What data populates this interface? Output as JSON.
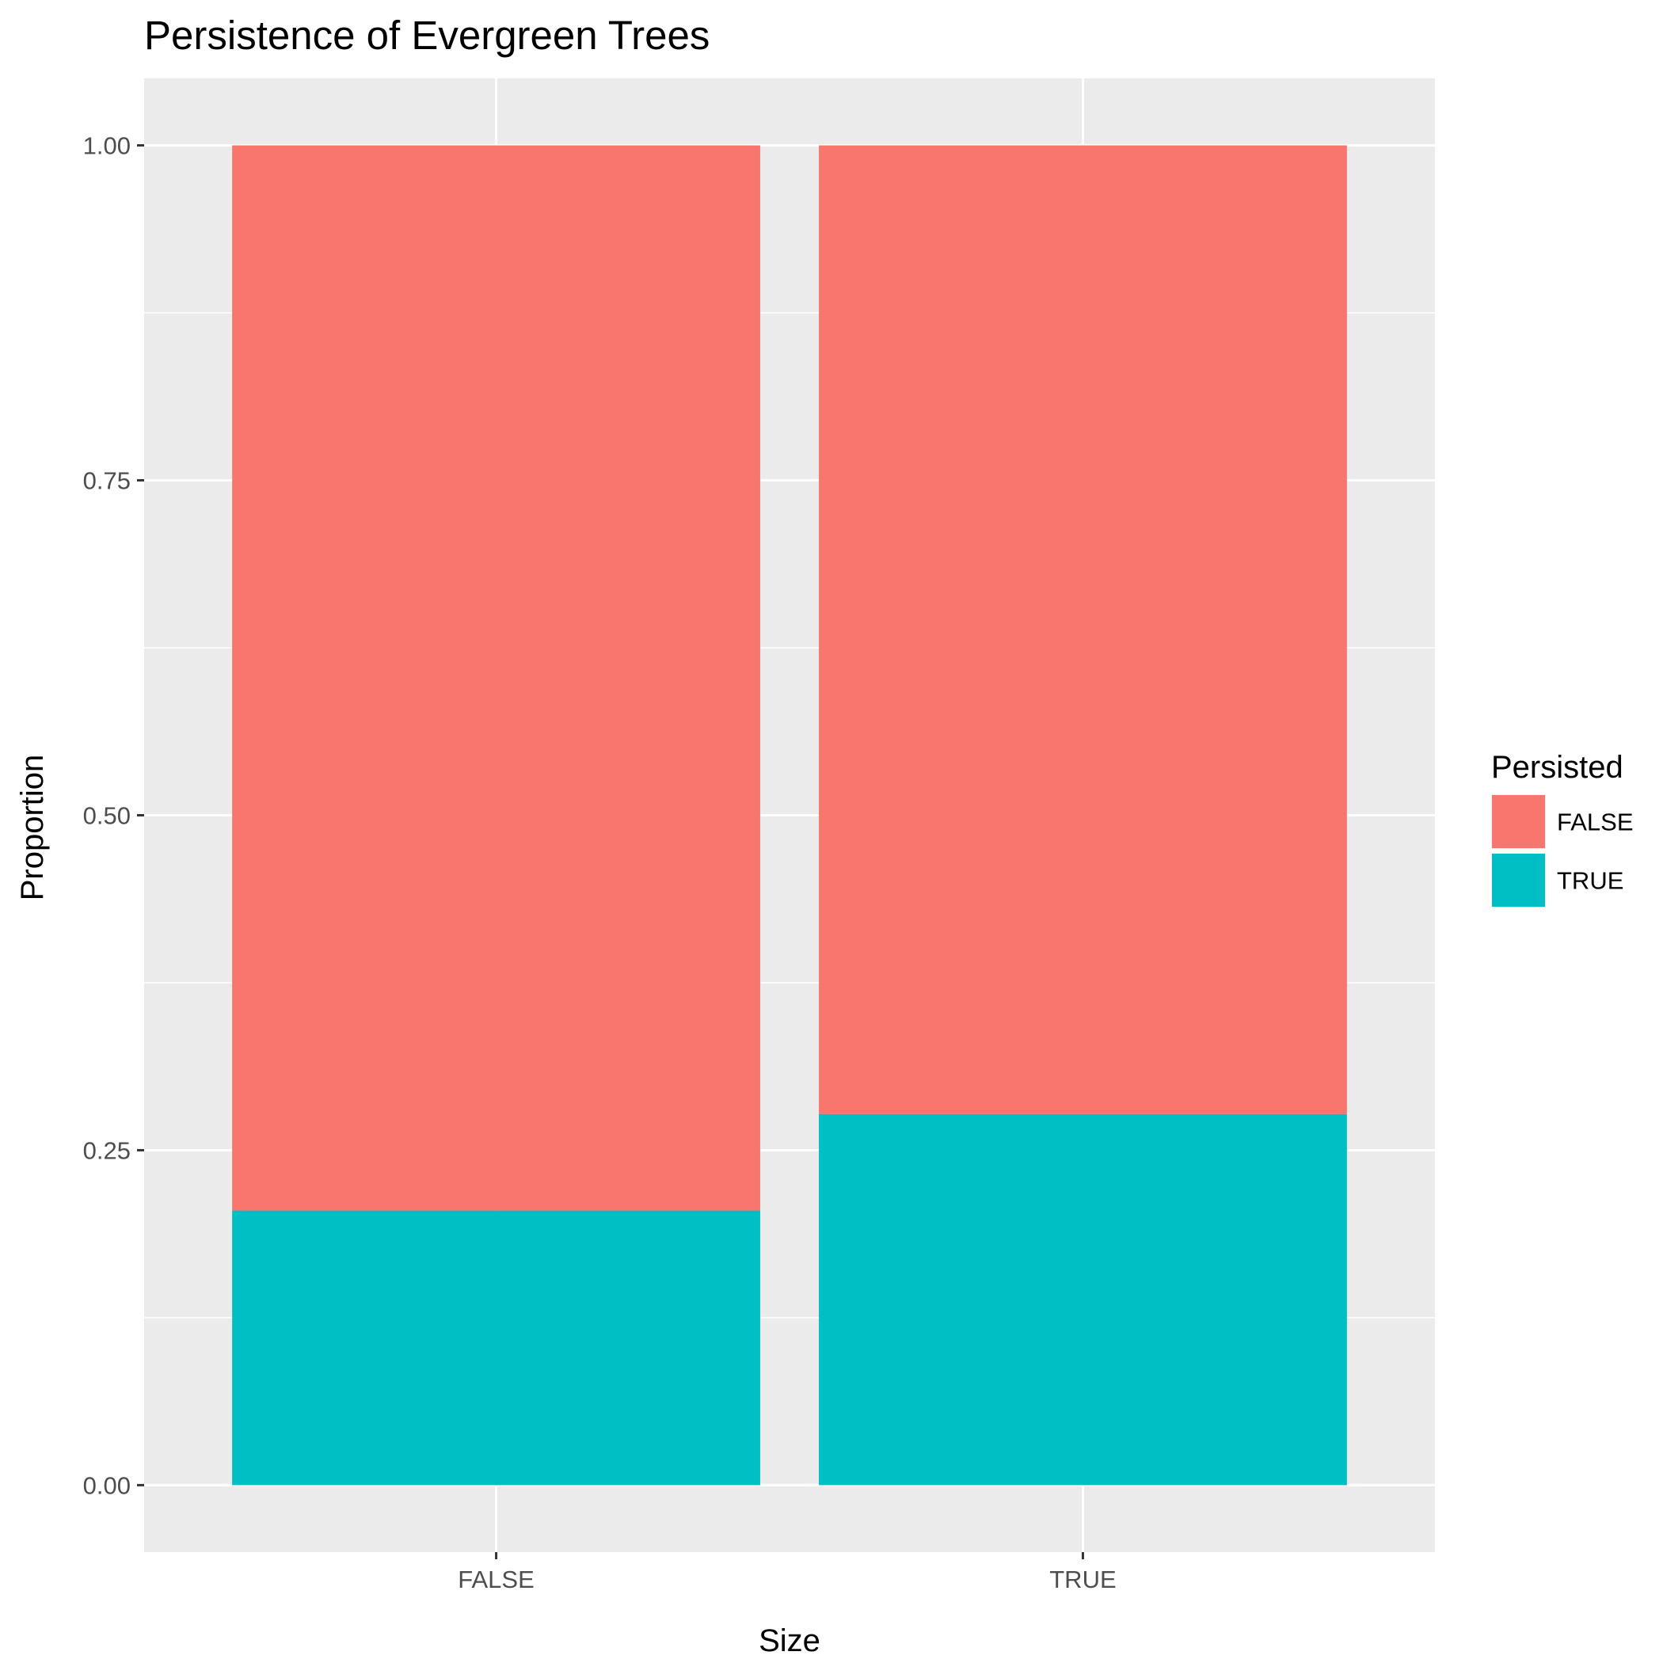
{
  "chart_data": {
    "type": "bar",
    "stacked": true,
    "title": "Persistence of Evergreen Trees",
    "xlabel": "Size",
    "ylabel": "Proportion",
    "categories": [
      "FALSE",
      "TRUE"
    ],
    "series": [
      {
        "name": "TRUE",
        "values": [
          0.205,
          0.277
        ],
        "color": "#00BFC4"
      },
      {
        "name": "FALSE",
        "values": [
          0.795,
          0.723
        ],
        "color": "#F8766D"
      }
    ],
    "ylim": [
      -0.05,
      1.05
    ],
    "yticks": [
      0,
      0.25,
      0.5,
      0.75,
      1
    ],
    "ytick_labels": [
      "0.00",
      "0.25",
      "0.50",
      "0.75",
      "1.00"
    ],
    "grid": true,
    "panel_background": "#EBEBEB",
    "legend": {
      "title": "Persisted",
      "position": "right",
      "entries": [
        {
          "label": "FALSE",
          "color": "#F8766D"
        },
        {
          "label": "TRUE",
          "color": "#00BFC4"
        }
      ]
    }
  }
}
